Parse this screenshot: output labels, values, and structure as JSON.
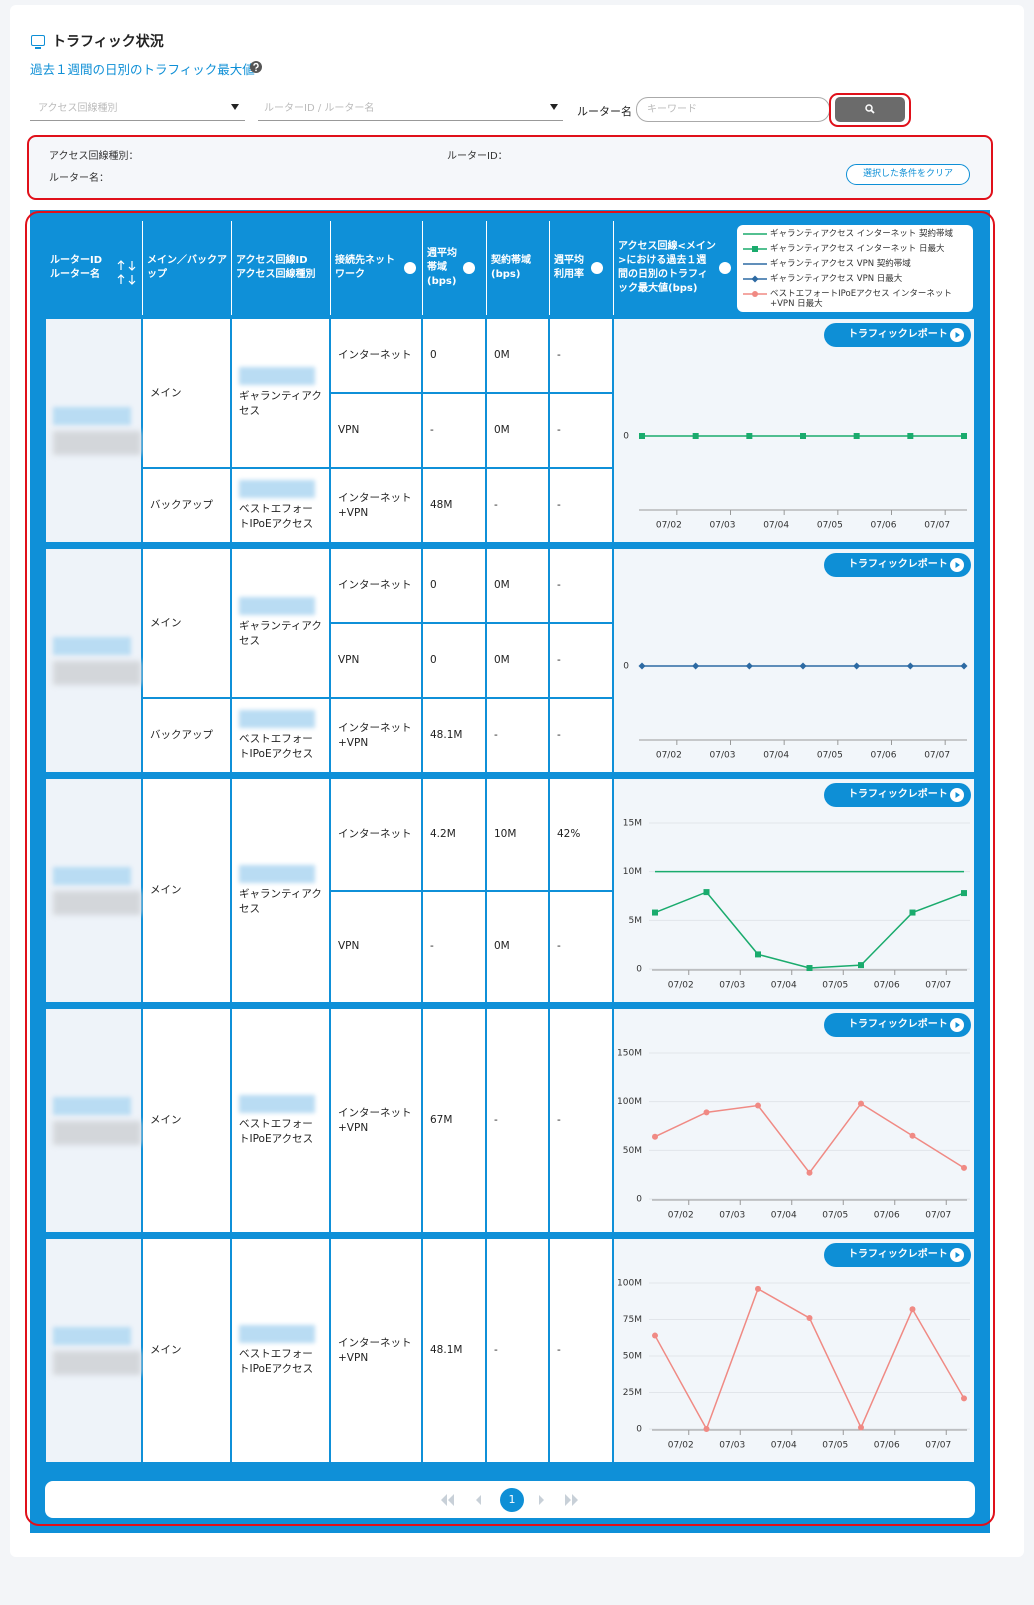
{
  "header": {
    "title": "トラフィック状況",
    "subtitle": "過去１週間の日別のトラフィック最大値"
  },
  "filters": {
    "line_type_placeholder": "アクセス回線種別",
    "router_placeholder": "ルーターID / ルーター名",
    "router_name_label": "ルーター名",
    "keyword_placeholder": "キーワード"
  },
  "conditions": {
    "line_type": "アクセス回線種別：",
    "router_id": "ルーターID：",
    "router_name": "ルーター名：",
    "clear_button": "選択した条件をクリア"
  },
  "table": {
    "headers": {
      "router_id": "ルーターID",
      "router_name": "ルーター名",
      "role": "メイン／バックアップ",
      "line_id": "アクセス回線ID",
      "line_type": "アクセス回線種別",
      "network": "接続先ネットワーク",
      "weekly_avg": "週平均帯域(bps)",
      "contract": "契約帯域(bps)",
      "usage": "週平均利用率",
      "chart": "アクセス回線<メイン>における過去１週間の日別のトラフィック最大値(bps)"
    },
    "legend": [
      {
        "name": "ギャランティアクセス インターネット 契約帯域",
        "color": "#1aab6d",
        "marker": "none"
      },
      {
        "name": "ギャランティアクセス インターネット 日最大",
        "color": "#1aab6d",
        "marker": "square"
      },
      {
        "name": "ギャランティアクセス VPN 契約帯域",
        "color": "#2d6aa3",
        "marker": "none"
      },
      {
        "name": "ギャランティアクセス VPN 日最大",
        "color": "#2d6aa3",
        "marker": "diamond"
      },
      {
        "name": "ベストエフォートIPoEアクセス インターネット+VPN 日最大",
        "color": "#f08a84",
        "marker": "circle"
      }
    ],
    "report_button": "トラフィックレポート",
    "rows": [
      {
        "groups": [
          {
            "role": "メイン",
            "line_type": "ギャランティアクセス",
            "lines": [
              {
                "network": "インターネット",
                "weekly_avg": "0",
                "contract": "0M",
                "usage": "-"
              },
              {
                "network": "VPN",
                "weekly_avg": "-",
                "contract": "0M",
                "usage": "-"
              }
            ]
          },
          {
            "role": "バックアップ",
            "line_type": "ベストエフォートIPoEアクセス",
            "lines": [
              {
                "network": "インターネット+VPN",
                "weekly_avg": "48M",
                "contract": "-",
                "usage": "-"
              }
            ]
          }
        ],
        "chart": {
          "type": "line",
          "categories": [
            null,
            "07/02",
            "07/03",
            "07/04",
            "07/05",
            "07/06",
            "07/07"
          ],
          "ylim": [
            -1,
            1
          ],
          "yticks": [
            0
          ],
          "grid": false,
          "series": [
            {
              "color": "#1aab6d",
              "marker": "square",
              "values": [
                0,
                0,
                0,
                0,
                0,
                0,
                0
              ]
            }
          ]
        }
      },
      {
        "groups": [
          {
            "role": "メイン",
            "line_type": "ギャランティアクセス",
            "lines": [
              {
                "network": "インターネット",
                "weekly_avg": "0",
                "contract": "0M",
                "usage": "-"
              },
              {
                "network": "VPN",
                "weekly_avg": "0",
                "contract": "0M",
                "usage": "-"
              }
            ]
          },
          {
            "role": "バックアップ",
            "line_type": "ベストエフォートIPoEアクセス",
            "lines": [
              {
                "network": "インターネット+VPN",
                "weekly_avg": "48.1M",
                "contract": "-",
                "usage": "-"
              }
            ]
          }
        ],
        "chart": {
          "type": "line",
          "categories": [
            null,
            "07/02",
            "07/03",
            "07/04",
            "07/05",
            "07/06",
            "07/07"
          ],
          "ylim": [
            -1,
            1
          ],
          "yticks": [
            0
          ],
          "grid": false,
          "series": [
            {
              "color": "#2d6aa3",
              "marker": "diamond",
              "values": [
                0,
                0,
                0,
                0,
                0,
                0,
                0
              ]
            }
          ]
        }
      },
      {
        "groups": [
          {
            "role": "メイン",
            "line_type": "ギャランティアクセス",
            "lines": [
              {
                "network": "インターネット",
                "weekly_avg": "4.2M",
                "contract": "10M",
                "usage": "42%"
              },
              {
                "network": "VPN",
                "weekly_avg": "-",
                "contract": "0M",
                "usage": "-"
              }
            ]
          }
        ],
        "chart": {
          "type": "line",
          "categories": [
            null,
            "07/02",
            "07/03",
            "07/04",
            "07/05",
            "07/06",
            "07/07"
          ],
          "ylim": [
            0,
            15000000
          ],
          "yticks": [
            0,
            {
              "value": 5000000,
              "label": "5M"
            },
            {
              "value": 10000000,
              "label": "10M"
            },
            {
              "value": 15000000,
              "label": "15M"
            }
          ],
          "grid": true,
          "series": [
            {
              "color": "#1aab6d",
              "marker": "none",
              "values": [
                10000000,
                10000000,
                10000000,
                10000000,
                10000000,
                10000000,
                10000000
              ]
            },
            {
              "color": "#1aab6d",
              "marker": "square",
              "values": [
                5800000,
                7900000,
                1500000,
                100000,
                400000,
                5800000,
                7800000
              ]
            }
          ]
        }
      },
      {
        "groups": [
          {
            "role": "メイン",
            "line_type": "ベストエフォートIPoEアクセス",
            "lines": [
              {
                "network": "インターネット+VPN",
                "weekly_avg": "67M",
                "contract": "-",
                "usage": "-"
              }
            ]
          }
        ],
        "chart": {
          "type": "line",
          "categories": [
            null,
            "07/02",
            "07/03",
            "07/04",
            "07/05",
            "07/06",
            "07/07"
          ],
          "ylim": [
            0,
            150000000
          ],
          "yticks": [
            0,
            {
              "value": 50000000,
              "label": "50M"
            },
            {
              "value": 100000000,
              "label": "100M"
            },
            {
              "value": 150000000,
              "label": "150M"
            }
          ],
          "grid": true,
          "series": [
            {
              "color": "#f08a84",
              "marker": "circle",
              "values": [
                64000000,
                89000000,
                96000000,
                27000000,
                98000000,
                65000000,
                32000000
              ]
            }
          ]
        }
      },
      {
        "groups": [
          {
            "role": "メイン",
            "line_type": "ベストエフォートIPoEアクセス",
            "lines": [
              {
                "network": "インターネット+VPN",
                "weekly_avg": "48.1M",
                "contract": "-",
                "usage": "-"
              }
            ]
          }
        ],
        "chart": {
          "type": "line",
          "categories": [
            null,
            "07/02",
            "07/03",
            "07/04",
            "07/05",
            "07/06",
            "07/07"
          ],
          "ylim": [
            0,
            100000000
          ],
          "yticks": [
            0,
            {
              "value": 25000000,
              "label": "25M"
            },
            {
              "value": 50000000,
              "label": "50M"
            },
            {
              "value": 75000000,
              "label": "75M"
            },
            {
              "value": 100000000,
              "label": "100M"
            }
          ],
          "grid": true,
          "series": [
            {
              "color": "#f08a84",
              "marker": "circle",
              "values": [
                64000000,
                0,
                96000000,
                76000000,
                1000000,
                82000000,
                21000000
              ]
            }
          ]
        }
      }
    ]
  },
  "pagination": {
    "current": "1"
  }
}
